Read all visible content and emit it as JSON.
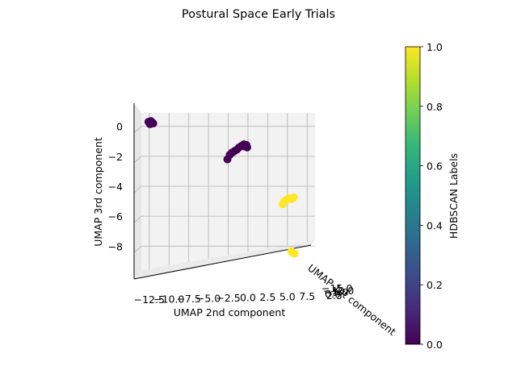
{
  "chart_data": {
    "type": "scatter",
    "projection": "3d",
    "title": "Postural Space Early Trials",
    "xlabel": "UMAP 2nd component",
    "ylabel": "UMAP 3rd component",
    "zlabel": "UMAP 1st component",
    "xticks": [
      "−12.5",
      "−10.0",
      "−7.5",
      "−5.0",
      "−2.5",
      "0.0",
      "2.5",
      "5.0",
      "7.5"
    ],
    "yticks": [
      "0",
      "−2",
      "−4",
      "−6",
      "−8"
    ],
    "zticks": [
      "−15.0",
      "−10.0",
      "−5.0",
      "0.0",
      "2.5"
    ],
    "xlim": [
      -13.5,
      8.5
    ],
    "ylim": [
      -9.6,
      0.9
    ],
    "grid": true,
    "series": [
      {
        "label_value": 0,
        "color": "#440154",
        "points": [
          {
            "x": -12.6,
            "y": 0.3
          },
          {
            "x": -12.3,
            "y": 0.35
          },
          {
            "x": -12.1,
            "y": 0.25
          },
          {
            "x": -12.4,
            "y": 0.15
          },
          {
            "x": -12.0,
            "y": 0.2
          },
          {
            "x": -2.6,
            "y": -2.2
          },
          {
            "x": -2.3,
            "y": -1.9
          },
          {
            "x": -2.0,
            "y": -1.75
          },
          {
            "x": -1.7,
            "y": -1.65
          },
          {
            "x": -1.4,
            "y": -1.55
          },
          {
            "x": -1.1,
            "y": -1.4
          },
          {
            "x": -0.8,
            "y": -1.3
          },
          {
            "x": -0.5,
            "y": -1.2
          },
          {
            "x": -0.2,
            "y": -1.25
          },
          {
            "x": -0.1,
            "y": -1.4
          },
          {
            "x": -0.35,
            "y": -1.35
          }
        ]
      },
      {
        "label_value": 1,
        "color": "#fde725",
        "points": [
          {
            "x": 4.4,
            "y": -5.2
          },
          {
            "x": 4.6,
            "y": -5.0
          },
          {
            "x": 4.9,
            "y": -4.9
          },
          {
            "x": 5.2,
            "y": -4.8
          },
          {
            "x": 5.5,
            "y": -4.85
          },
          {
            "x": 5.8,
            "y": -4.75
          },
          {
            "x": 5.5,
            "y": -8.35
          },
          {
            "x": 5.7,
            "y": -8.45
          },
          {
            "x": 5.9,
            "y": -8.5
          }
        ]
      }
    ],
    "colorbar": {
      "label": "HDBSCAN Labels",
      "ticks": [
        "0.0",
        "0.2",
        "0.4",
        "0.6",
        "0.8",
        "1.0"
      ],
      "range": [
        0,
        1
      ],
      "colormap": "viridis",
      "colors": [
        "#440154",
        "#482878",
        "#3e4989",
        "#31688e",
        "#26828e",
        "#1f9e89",
        "#35b779",
        "#6ece58",
        "#b5de2b",
        "#fde725"
      ]
    }
  }
}
